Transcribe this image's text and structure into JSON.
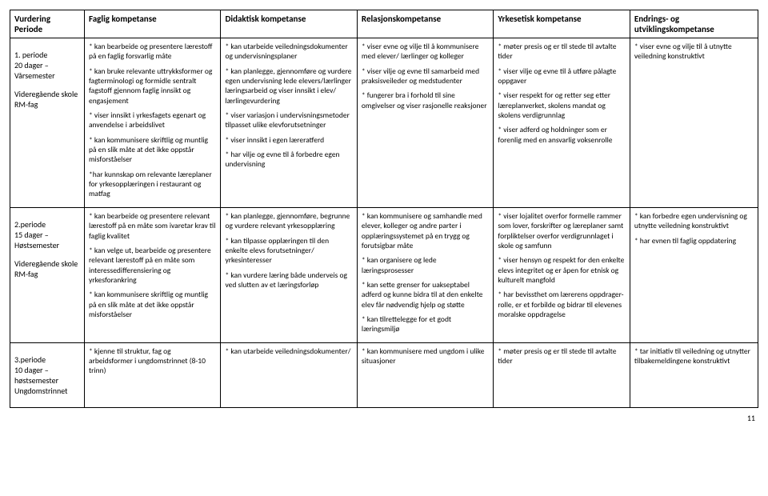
{
  "headers": [
    "Vurdering\nPeriode",
    "Faglig kompetanse",
    "Didaktisk kompetanse",
    "Relasjonskompetanse",
    "Yrkesetisk kompetanse",
    "Endrings- og utviklingskompetanse"
  ],
  "rows": [
    {
      "period": "1. periode\n20 dager –\nVårsemester\n\nVideregående skole RM-fag",
      "faglig": "* kan bearbeide og presentere lærestoff på en faglig forsvarlig måte\n\n* kan bruke relevante uttrykksformer og fagterminologi og formidle sentralt fagstoff gjennom faglig innsikt og engasjement\n\n* viser innsikt i yrkesfagets egenart og anvendelse i arbeidslivet\n\n* kan kommunisere skriftlig og muntlig på en slik måte at det ikke oppstår misforståelser\n\n*har kunnskap om relevante læreplaner for yrkesopplæringen i restaurant og matfag",
      "didaktisk": "* kan utarbeide veiledningsdokumenter og undervisningsplaner\n\n* kan planlegge, gjennomføre og vurdere egen undervisning lede elevers/lærlinger læringsarbeid og viser innsikt i elev/ lærlingevurdering\n\n* viser variasjon i undervisningsmetoder tilpasset ulike elevforutsetninger\n\n* viser innsikt i egen læreratferd\n\n* har vilje og evne til å forbedre egen undervisning",
      "relasjon": "* viser evne og vilje til å kommunisere med elever/ lærlinger og kolleger\n\n* viser vilje og evne til samarbeid med praksisveileder og medstudenter\n\n* fungerer bra i forhold til sine omgivelser og viser rasjonelle reaksjoner",
      "yrkesetisk": "* møter presis og er til stede til avtalte tider\n\n* viser vilje og evne til å utføre pålagte oppgaver\n\n* viser respekt for og retter seg etter læreplanverket, skolens mandat og skolens verdigrunnlag\n\n* viser adferd og holdninger som er forenlig med en ansvarlig voksenrolle",
      "endrings": "* viser evne og vilje til å utnytte veiledning konstruktivt"
    },
    {
      "period": "2.periode\n15 dager –\nHøstsemester\n\nVideregående skole RM-fag",
      "faglig": "* kan bearbeide og presentere relevant lærestoff på en måte som ivaretar krav til faglig kvalitet\n\n* kan velge ut, bearbeide og presentere relevant lærestoff på en måte som interessedifferensiering og yrkesforankring\n\n* kan kommunisere skriftlig og muntlig på en slik måte at det ikke oppstår misforståelser",
      "didaktisk": "* kan planlegge, gjennomføre, begrunne og vurdere relevant yrkesopplæring\n\n* kan tilpasse opplæringen til den enkelte elevs forutsetninger/ yrkesinteresser\n\n* kan vurdere læring både underveis og ved slutten av et læringsforløp",
      "relasjon": "* kan kommunisere og samhandle med elever, kolleger og andre parter i opplæringssystemet på en trygg og forutsigbar måte\n\n* kan organisere og lede læringsprosesser\n\n* kan sette grenser for uakseptabel adferd og kunne bidra til at den enkelte elev får nødvendig hjelp og støtte\n\n* kan tilrettelegge for et godt læringsmiljø",
      "yrkesetisk": "* viser lojalitet overfor formelle rammer som lover, forskrifter og læreplaner samt forpliktelser overfor verdigrunnlaget i skole og samfunn\n\n* viser hensyn og respekt for den enkelte elevs integritet og er åpen for etnisk og kulturelt mangfold\n\n* har bevissthet om lærerens oppdrager- rolle, er et forbilde og bidrar til elevenes moralske oppdragelse",
      "endrings": "* kan forbedre egen undervisning og utnytte veiledning konstruktivt\n\n* har evnen til faglig oppdatering"
    },
    {
      "period": "3.periode\n10 dager –\nhøstsemester\nUngdomstrinnet",
      "faglig": "* kjenne til struktur, fag og arbeidsformer i ungdomstrinnet (8-10 trinn)",
      "didaktisk": "* kan utarbeide veiledningsdokumenter/",
      "relasjon": "* kan kommunisere med ungdom i ulike situasjoner",
      "yrkesetisk": "* møter presis og er til stede til avtalte tider",
      "endrings": "* tar initiativ til veiledning og utnytter tilbakemeldingene konstruktivt"
    }
  ],
  "page_number": "11"
}
